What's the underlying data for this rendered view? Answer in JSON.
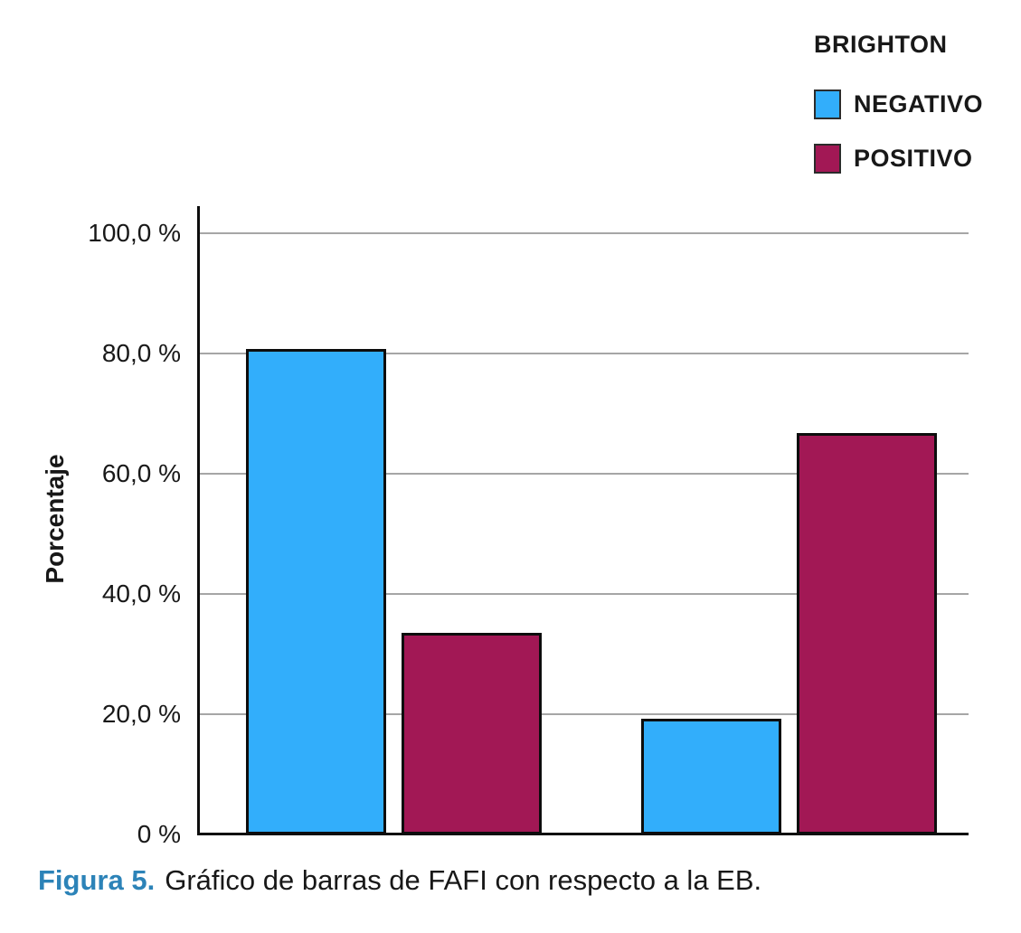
{
  "legend": {
    "title": "BRIGHTON",
    "items": [
      {
        "label": "NEGATIVO",
        "color": "#32AEFB"
      },
      {
        "label": "POSITIVO",
        "color": "#A21855"
      }
    ]
  },
  "chart_data": {
    "type": "bar",
    "title": "",
    "xlabel": "",
    "ylabel": "Porcentaje",
    "categories": [
      "",
      ""
    ],
    "series": [
      {
        "name": "NEGATIVO",
        "color": "#32AEFB",
        "values": [
          80.8,
          19.3
        ]
      },
      {
        "name": "POSITIVO",
        "color": "#A21855",
        "values": [
          33.6,
          66.7
        ]
      }
    ],
    "ylim": [
      0,
      100
    ],
    "ytick_step": 20,
    "yticks": [
      "0 %",
      "20,0 %",
      "40,0 %",
      "60,0 %",
      "80,0 %",
      "100,0 %"
    ],
    "grid": true,
    "legend_position": "top-right",
    "note": "x-axis groups are unlabeled in the figure"
  },
  "caption": {
    "label": "Figura 5.",
    "text": "Gráfico de barras de FAFI con respecto a la EB."
  },
  "colors": {
    "negativo_fill": "#32AEFB",
    "positivo_fill": "#A21855",
    "bar_border": "#0D0D0D",
    "axis": "#0D0D0D",
    "gridline": "#A6A6A6",
    "caption_accent": "#2C83B8",
    "text": "#181818",
    "background": "#FFFFFF"
  }
}
